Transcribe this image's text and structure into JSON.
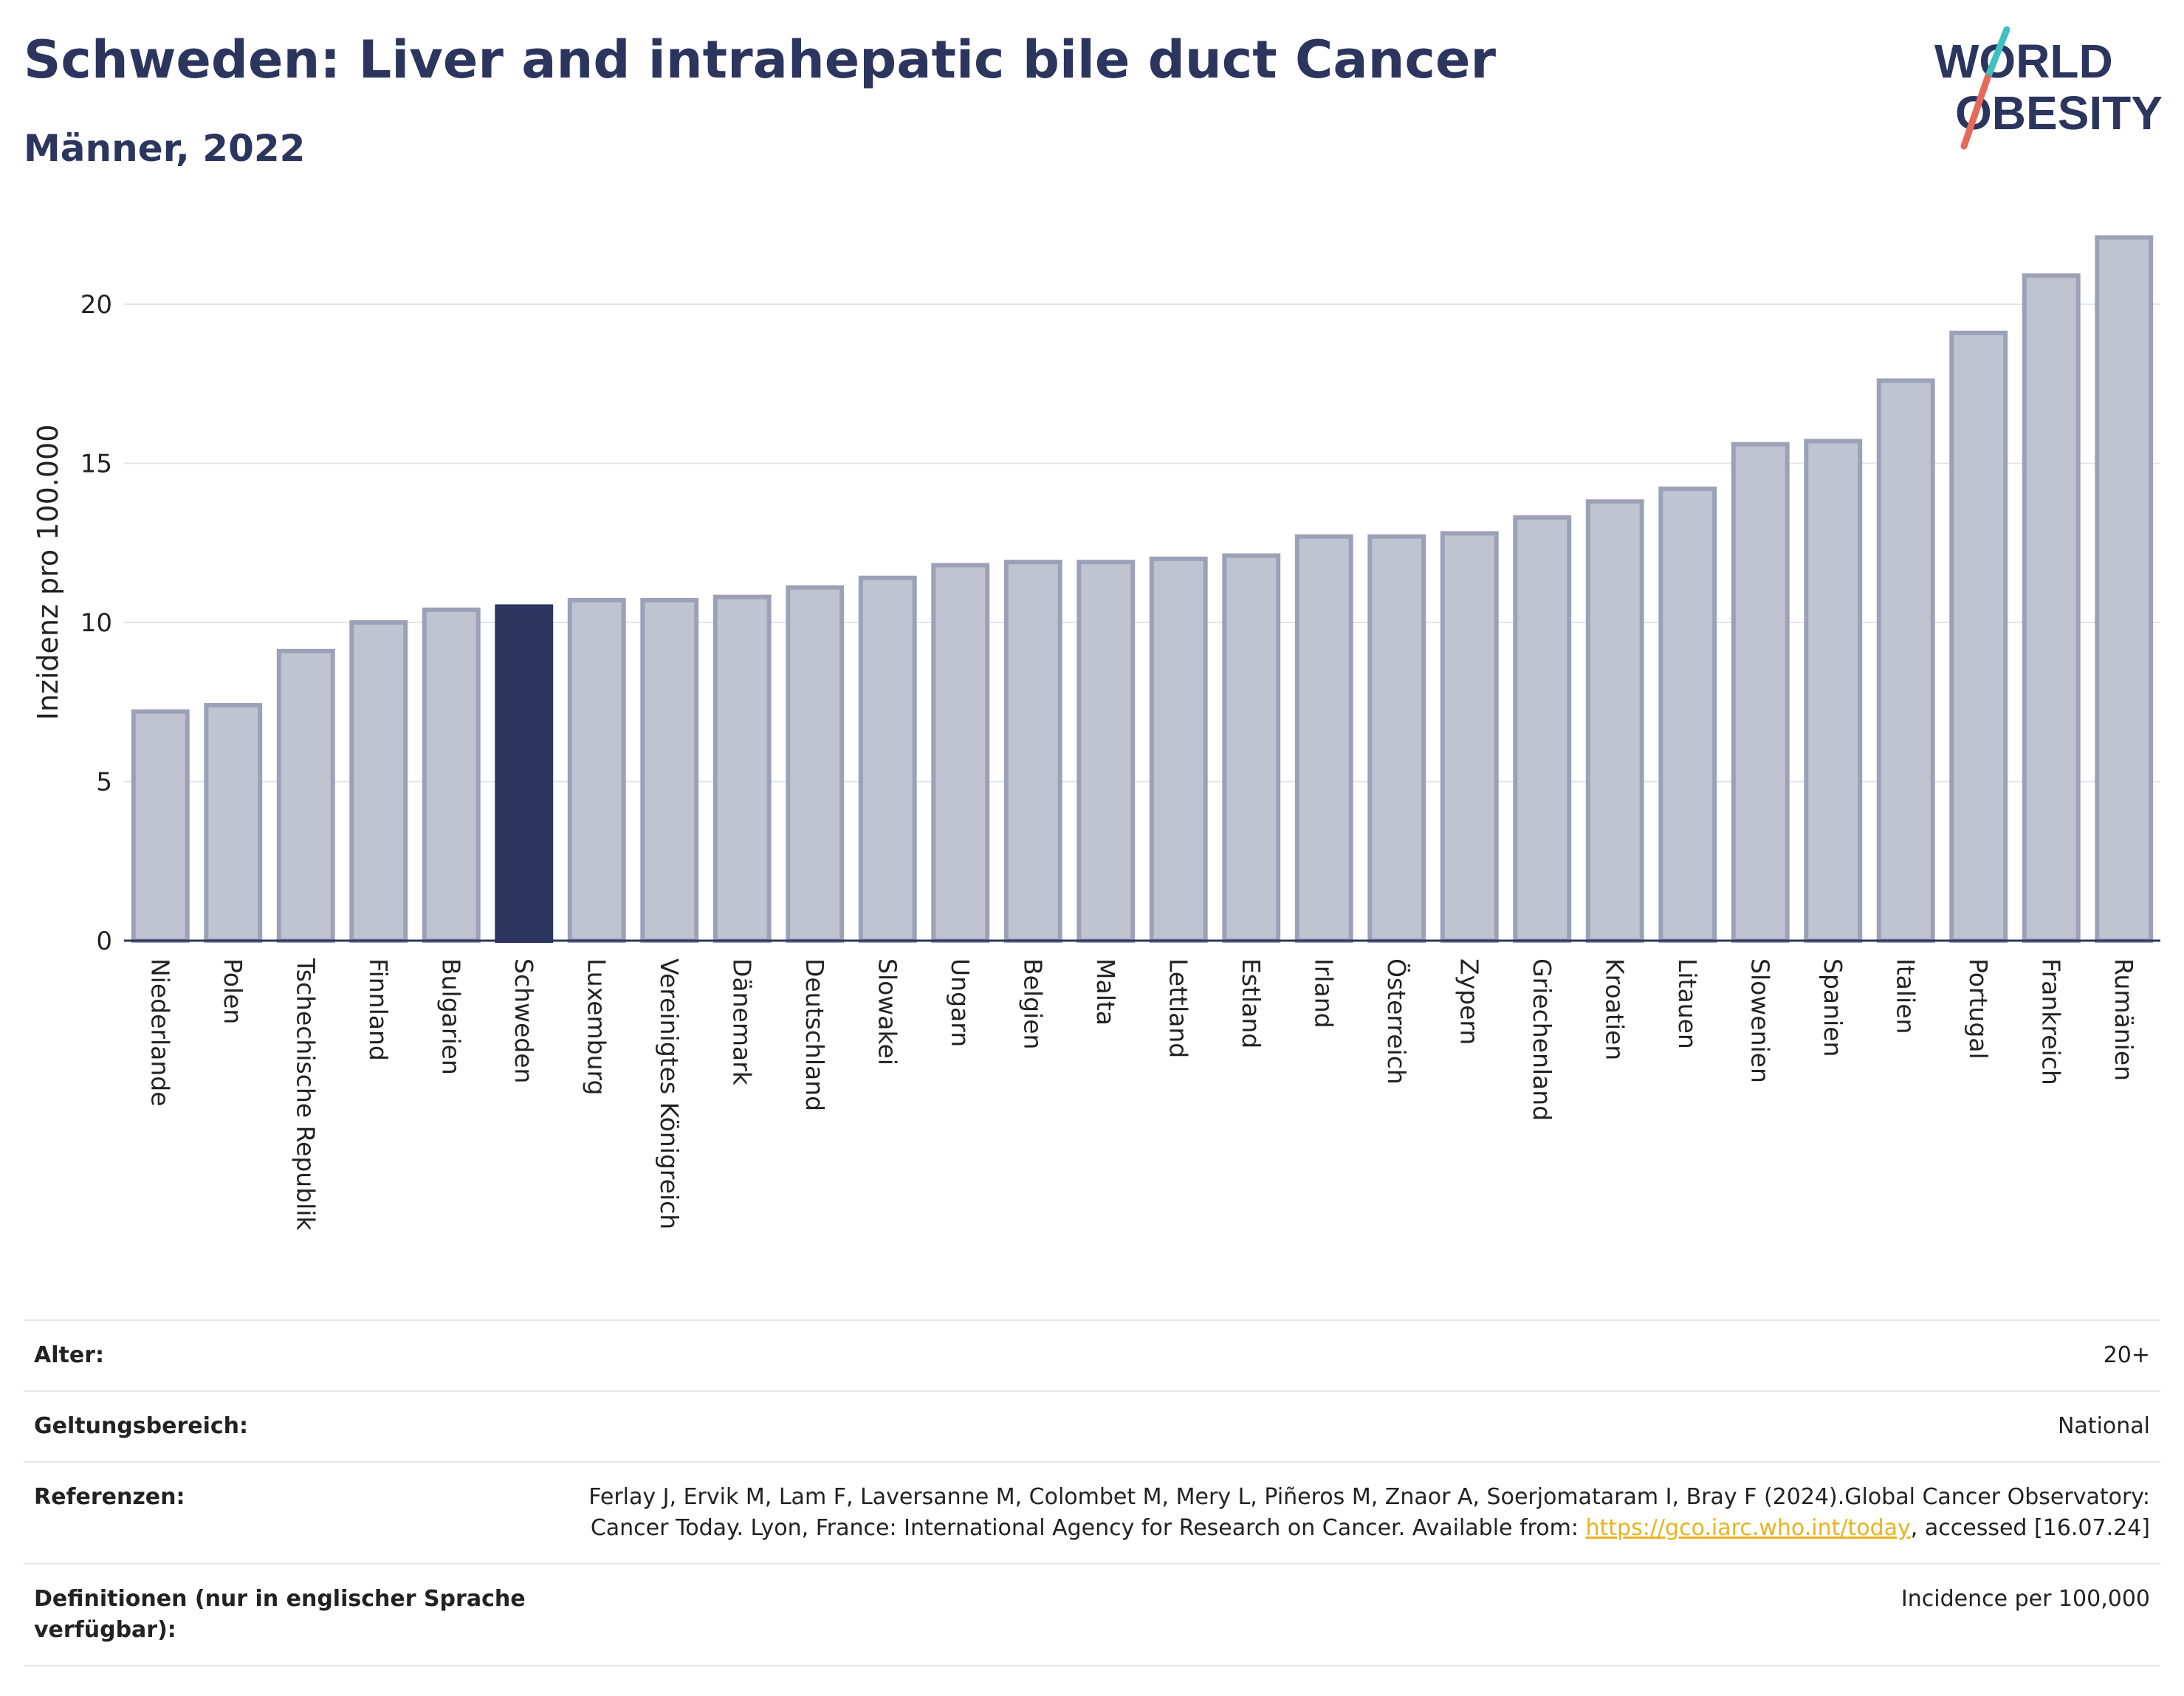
{
  "header": {
    "title": "Schweden: Liver and intrahepatic bile duct Cancer",
    "subtitle": "Männer, 2022"
  },
  "logo": {
    "line1": "WORLD",
    "line2": "OBESITY",
    "colors": {
      "text": "#2b355e",
      "slash_top": "#3ec1c0",
      "slash_bottom": "#e8695a"
    }
  },
  "colors": {
    "bar": "#c0c3d0",
    "bar_stroke": "#9ca1b8",
    "highlight": "#2b355e",
    "grid": "#e3e4ea",
    "axis": "#2b355e"
  },
  "chart_data": {
    "type": "bar",
    "ylabel": "Inzidenz pro 100.000",
    "ylim": [
      0,
      22.6
    ],
    "yticks": [
      0,
      5,
      10,
      15,
      20
    ],
    "grid": true,
    "highlight": "Schweden",
    "categories": [
      "Niederlande",
      "Polen",
      "Tschechische Republik",
      "Finnland",
      "Bulgarien",
      "Schweden",
      "Luxemburg",
      "Vereinigtes Königreich",
      "Dänemark",
      "Deutschland",
      "Slowakei",
      "Ungarn",
      "Belgien",
      "Malta",
      "Lettland",
      "Estland",
      "Irland",
      "Österreich",
      "Zypern",
      "Griechenland",
      "Kroatien",
      "Litauen",
      "Slowenien",
      "Spanien",
      "Italien",
      "Portugal",
      "Frankreich",
      "Rumänien"
    ],
    "values": [
      7.2,
      7.4,
      9.1,
      10.0,
      10.4,
      10.5,
      10.7,
      10.7,
      10.8,
      11.1,
      11.4,
      11.8,
      11.9,
      11.9,
      12.0,
      12.1,
      12.7,
      12.7,
      12.8,
      13.3,
      13.8,
      14.2,
      15.6,
      15.7,
      17.6,
      19.1,
      20.9,
      22.1
    ]
  },
  "meta": {
    "age_label": "Alter:",
    "age_value": "20+",
    "scope_label": "Geltungsbereich:",
    "scope_value": "National",
    "refs_label": "Referenzen:",
    "refs_text_1": "Ferlay J, Ervik M, Lam F, Laversanne M, Colombet M, Mery L, Piñeros M, Znaor A, Soerjomataram I, Bray F (2024).Global Cancer Observatory: Cancer Today. Lyon, France: International Agency for Research on Cancer. Available from: ",
    "refs_link": "https://gco.iarc.who.int/today",
    "refs_text_2": ", accessed [16.07.24]",
    "defs_label": "Definitionen (nur in englischer Sprache verfügbar):",
    "defs_value": "Incidence per 100,000"
  }
}
